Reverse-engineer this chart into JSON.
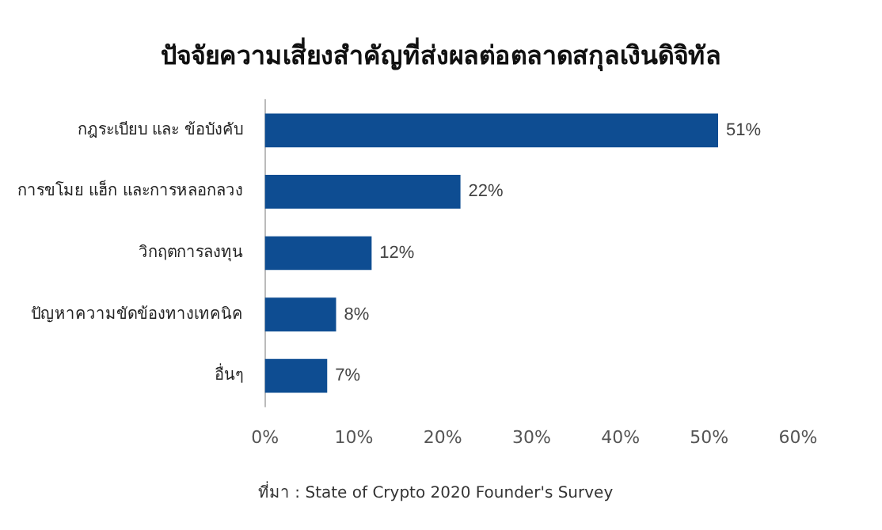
{
  "chart_data": {
    "type": "bar",
    "orientation": "horizontal",
    "title": "ปัจจัยความเสี่ยงสำคัญที่ส่งผลต่อตลาดสกุลเงินดิจิทัล",
    "categories": [
      "กฎระเบียบ และ ข้อบังคับ",
      "การขโมย แฮ็ก และการหลอกลวง",
      "วิกฤตการลงทุน",
      "ปัญหาความขัดข้องทางเทคนิค",
      "อื่นๆ"
    ],
    "values": [
      51,
      22,
      12,
      8,
      7
    ],
    "value_labels": [
      "51%",
      "22%",
      "12%",
      "8%",
      "7%"
    ],
    "color": "#0e4d92",
    "xlim": [
      0,
      60
    ],
    "xticks": [
      {
        "value": 0,
        "label": "0%"
      },
      {
        "value": 10,
        "label": "10%"
      },
      {
        "value": 20,
        "label": "20%"
      },
      {
        "value": 30,
        "label": "30%"
      },
      {
        "value": 40,
        "label": "40%"
      },
      {
        "value": 50,
        "label": "50%"
      },
      {
        "value": 60,
        "label": "60%"
      }
    ],
    "grid": false,
    "annotations": [
      "ที่มา : State of Crypto 2020 Founder's Survey"
    ]
  }
}
